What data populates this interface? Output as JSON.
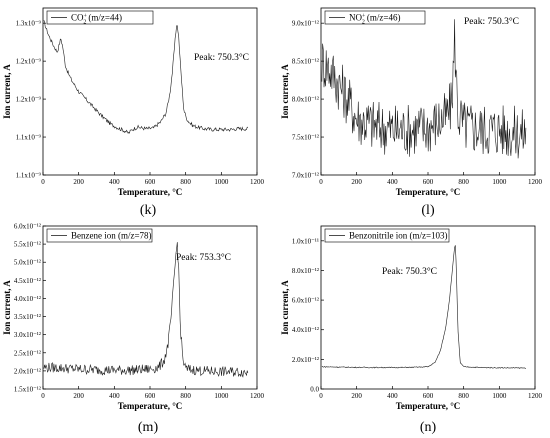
{
  "chart_data": [
    {
      "type": "line",
      "panel_label": "(k)",
      "legend": {
        "main": "CO",
        "sub": "2",
        "sup": "+",
        "detail": "(m/z=44)"
      },
      "peak_label": "Peak: 750.3°C",
      "xlabel": "Temperature, °C",
      "ylabel": "Ion current, A",
      "xlim": [
        0,
        1200
      ],
      "ylim": [
        1.1e-09,
        1.32e-09
      ],
      "xticks": [
        0,
        200,
        400,
        600,
        800,
        1000,
        1200
      ],
      "yticks": [
        1.1e-09,
        1.15e-09,
        1.2e-09,
        1.25e-09,
        1.3e-09
      ],
      "ytick_labels": [
        "1.1x10⁻⁹",
        "1.1x10⁻⁹",
        "1.2x10⁻⁹",
        "1.2x10⁻⁹",
        "1.3x10⁻⁹"
      ],
      "noise": 2.5e-12,
      "x": [
        5,
        30,
        60,
        80,
        100,
        110,
        125,
        140,
        160,
        200,
        260,
        320,
        380,
        420,
        460,
        480,
        500,
        530,
        580,
        620,
        660,
        690,
        710,
        725,
        740,
        750,
        760,
        775,
        790,
        810,
        840,
        900,
        950,
        1000,
        1050,
        1100,
        1150
      ],
      "y": [
        1.302e-09,
        1.285e-09,
        1.27e-09,
        1.262e-09,
        1.28e-09,
        1.27e-09,
        1.245e-09,
        1.235e-09,
        1.225e-09,
        1.21e-09,
        1.195e-09,
        1.18e-09,
        1.167e-09,
        1.162e-09,
        1.158e-09,
        1.155e-09,
        1.16e-09,
        1.163e-09,
        1.161e-09,
        1.162e-09,
        1.17e-09,
        1.182e-09,
        1.205e-09,
        1.235e-09,
        1.275e-09,
        1.301e-09,
        1.285e-09,
        1.23e-09,
        1.185e-09,
        1.172e-09,
        1.165e-09,
        1.161e-09,
        1.16e-09,
        1.16e-09,
        1.16e-09,
        1.161e-09,
        1.161e-09
      ]
    },
    {
      "type": "line",
      "panel_label": "(l)",
      "legend": {
        "main": "NO",
        "sub": "2",
        "sup": "+",
        "detail": "(m/z=46)"
      },
      "peak_label": "Peak: 750.3°C",
      "xlabel": "Temperature, °C",
      "ylabel": "Ion current, A",
      "xlim": [
        0,
        1200
      ],
      "ylim": [
        7e-12,
        9.2e-12
      ],
      "xticks": [
        0,
        200,
        400,
        600,
        800,
        1000,
        1200
      ],
      "yticks": [
        7e-12,
        7.5e-12,
        8e-12,
        8.5e-12,
        9e-12
      ],
      "ytick_labels": [
        "7.0x10⁻¹²",
        "7.5x10⁻¹²",
        "8.0x10⁻¹²",
        "8.5x10⁻¹²",
        "9.0x10⁻¹²"
      ],
      "noise": 3.6e-13,
      "x": [
        5,
        50,
        100,
        150,
        200,
        300,
        400,
        500,
        600,
        650,
        700,
        730,
        745,
        750,
        755,
        770,
        800,
        900,
        1000,
        1100,
        1150
      ],
      "y": [
        8.5e-12,
        8.4e-12,
        8.2e-12,
        8e-12,
        7.75e-12,
        7.65e-12,
        7.6e-12,
        7.6e-12,
        7.62e-12,
        7.7e-12,
        7.75e-12,
        7.9e-12,
        8.5e-12,
        8.9e-12,
        8.4e-12,
        7.8e-12,
        7.65e-12,
        7.6e-12,
        7.6e-12,
        7.55e-12,
        7.55e-12
      ]
    },
    {
      "type": "line",
      "panel_label": "(m)",
      "legend": {
        "main": "Benzene ion (m/z=78)"
      },
      "peak_label": "Peak: 753.3°C",
      "xlabel": "Temperature, °C",
      "ylabel": "Ion current, A",
      "xlim": [
        0,
        1200
      ],
      "ylim": [
        1.5e-12,
        6e-12
      ],
      "xticks": [
        0,
        200,
        400,
        600,
        800,
        1000,
        1200
      ],
      "yticks": [
        1.5e-12,
        2e-12,
        2.5e-12,
        3e-12,
        3.5e-12,
        4e-12,
        4.5e-12,
        5e-12,
        5.5e-12,
        6e-12
      ],
      "ytick_labels": [
        "1.5x10⁻¹²",
        "2.0x10⁻¹²",
        "2.5x10⁻¹²",
        "3.0x10⁻¹²",
        "3.5x10⁻¹²",
        "4.0x10⁻¹²",
        "4.5x10⁻¹²",
        "5.0x10⁻¹²",
        "5.5x10⁻¹²",
        "6.0x10⁻¹²"
      ],
      "noise": 1.4e-13,
      "x": [
        5,
        100,
        200,
        300,
        400,
        500,
        600,
        650,
        680,
        700,
        715,
        725,
        735,
        745,
        753,
        762,
        770,
        785,
        800,
        900,
        1000,
        1100,
        1150
      ],
      "y": [
        2.1e-12,
        2.08e-12,
        2.05e-12,
        2.03e-12,
        2.02e-12,
        2.02e-12,
        2.05e-12,
        2.1e-12,
        2.3e-12,
        2.7e-12,
        3.3e-12,
        3.9e-12,
        4.5e-12,
        5.2e-12,
        5.55e-12,
        4.7e-12,
        3.2e-12,
        2.3e-12,
        2.05e-12,
        2e-12,
        1.98e-12,
        1.97e-12,
        1.96e-12
      ]
    },
    {
      "type": "line",
      "panel_label": "(n)",
      "legend": {
        "main": "Benzonitrile ion (m/z=103)"
      },
      "peak_label": "Peak: 750.3°C",
      "xlabel": "Temperature, °C",
      "ylabel": "Ion current, A",
      "xlim": [
        0,
        1200
      ],
      "ylim": [
        0,
        1.1e-11
      ],
      "xticks": [
        0,
        200,
        400,
        600,
        800,
        1000,
        1200
      ],
      "yticks": [
        0,
        2e-12,
        4e-12,
        6e-12,
        8e-12,
        1e-11
      ],
      "ytick_labels": [
        "0.0",
        "2.0x10⁻¹²",
        "4.0x10⁻¹²",
        "6.0x10⁻¹²",
        "8.0x10⁻¹²",
        "1.0x10⁻¹¹"
      ],
      "noise": 3e-14,
      "x": [
        5,
        100,
        200,
        300,
        400,
        500,
        600,
        640,
        670,
        700,
        720,
        735,
        745,
        752,
        758,
        768,
        780,
        800,
        900,
        1000,
        1100,
        1150
      ],
      "y": [
        1.5e-12,
        1.48e-12,
        1.46e-12,
        1.45e-12,
        1.45e-12,
        1.46e-12,
        1.5e-12,
        1.8e-12,
        2.6e-12,
        4.2e-12,
        6e-12,
        7.8e-12,
        9.1e-12,
        9.9e-12,
        8.5e-12,
        4e-12,
        1.8e-12,
        1.5e-12,
        1.45e-12,
        1.43e-12,
        1.42e-12,
        1.42e-12
      ]
    }
  ]
}
